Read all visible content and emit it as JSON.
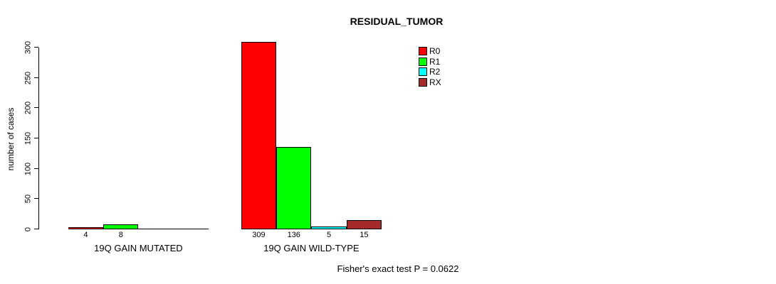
{
  "chart_data": {
    "type": "bar",
    "title": "RESIDUAL_TUMOR",
    "ylabel": "number of cases",
    "xlabel": "",
    "ylim": [
      0,
      300
    ],
    "yticks": [
      "0",
      "50",
      "100",
      "150",
      "200",
      "250",
      "300"
    ],
    "ytick_values": [
      0,
      50,
      100,
      150,
      200,
      250,
      300
    ],
    "grid": false,
    "legend_position": "top-right",
    "axis_color": "#000000",
    "background_color": "#ffffff",
    "categories": [
      "19Q GAIN MUTATED",
      "19Q GAIN WILD-TYPE"
    ],
    "series": [
      {
        "name": "R0",
        "color": "#FF0000",
        "values": [
          4,
          309
        ]
      },
      {
        "name": "R1",
        "color": "#00FF00",
        "values": [
          8,
          136
        ]
      },
      {
        "name": "R2",
        "color": "#00FFFF",
        "values": [
          0,
          5
        ]
      },
      {
        "name": "RX",
        "color": "#A52A2A",
        "values": [
          0,
          15
        ]
      }
    ],
    "bar_labels": [
      [
        "4",
        "8",
        "",
        ""
      ],
      [
        "309",
        "136",
        "5",
        "15"
      ]
    ],
    "footnote": "Fisher's exact test P = 0.0622"
  }
}
